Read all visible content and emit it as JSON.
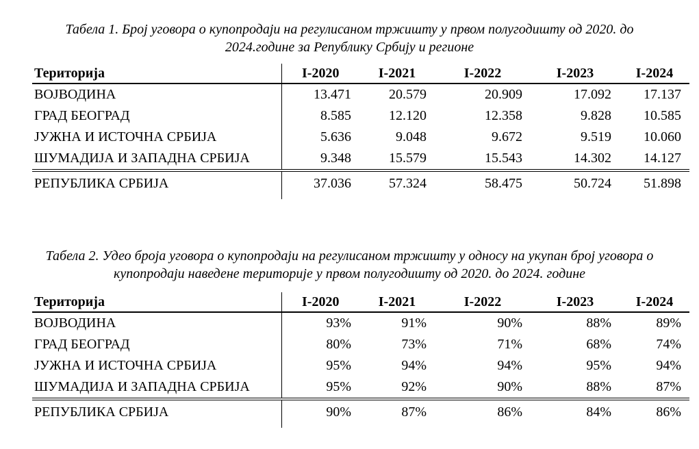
{
  "page": {
    "background_color": "#ffffff",
    "text_color": "#000000",
    "language": "Serbian (Cyrillic)"
  },
  "table1": {
    "caption": "Табела 1. Број уговора о купопродаји на регулисаном тржишту у првом полугодишту од 2020. до 2024.године за Републику Србију и регионе",
    "header": {
      "territory": "Територија",
      "periods": [
        "I-2020",
        "I-2021",
        "I-2022",
        "I-2023",
        "I-2024"
      ]
    },
    "rows": [
      {
        "territory": "ВОЈВОДИНА",
        "values": [
          "13.471",
          "20.579",
          "20.909",
          "17.092",
          "17.137"
        ]
      },
      {
        "territory": "ГРАД БЕОГРАД",
        "values": [
          "8.585",
          "12.120",
          "12.358",
          "9.828",
          "10.585"
        ]
      },
      {
        "territory": "ЈУЖНА И ИСТОЧНА СРБИЈА",
        "values": [
          "5.636",
          "9.048",
          "9.672",
          "9.519",
          "10.060"
        ]
      },
      {
        "territory": "ШУМАДИЈА И ЗАПАДНА СРБИЈА",
        "values": [
          "9.348",
          "15.579",
          "15.543",
          "14.302",
          "14.127"
        ]
      }
    ],
    "total_row": {
      "territory": "РЕПУБЛИКА СРБИЈА",
      "values": [
        "37.036",
        "57.324",
        "58.475",
        "50.724",
        "51.898"
      ]
    }
  },
  "table2": {
    "caption": "Табела 2. Удео броја уговора о купопродаји на регулисаном тржишту у односу на укупан број уговора о купопродаји наведене територије у првом полугодишту од 2020. до 2024. године",
    "header": {
      "territory": "Територија",
      "periods": [
        "I-2020",
        "I-2021",
        "I-2022",
        "I-2023",
        "I-2024"
      ]
    },
    "rows": [
      {
        "territory": "ВОЈВОДИНА",
        "values": [
          "93%",
          "91%",
          "90%",
          "88%",
          "89%"
        ]
      },
      {
        "territory": "ГРАД БЕОГРАД",
        "values": [
          "80%",
          "73%",
          "71%",
          "68%",
          "74%"
        ]
      },
      {
        "territory": "ЈУЖНА И ИСТОЧНА СРБИЈА",
        "values": [
          "95%",
          "94%",
          "94%",
          "95%",
          "94%"
        ]
      },
      {
        "territory": "ШУМАДИЈА И ЗАПАДНА СРБИЈА",
        "values": [
          "95%",
          "92%",
          "90%",
          "88%",
          "87%"
        ]
      }
    ],
    "total_row": {
      "territory": "РЕПУБЛИКА СРБИЈА",
      "values": [
        "90%",
        "87%",
        "86%",
        "84%",
        "86%"
      ]
    }
  }
}
